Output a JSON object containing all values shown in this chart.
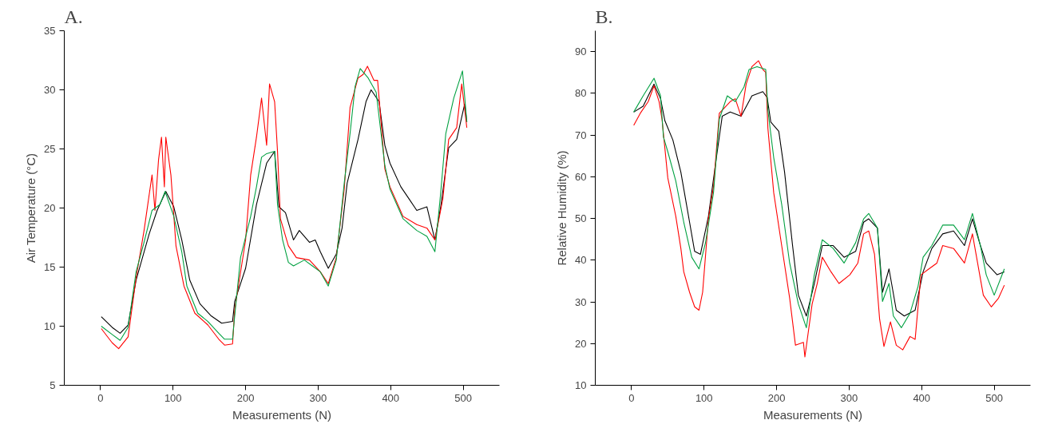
{
  "chart_data": [
    {
      "type": "line",
      "title": "A.",
      "xlabel": "Measurements (N)",
      "ylabel": "Air Temperature (°C)",
      "xlim": [
        -50,
        550
      ],
      "xticks": [
        0,
        100,
        200,
        300,
        400,
        500
      ],
      "ylim": [
        5,
        35
      ],
      "yticks": [
        5,
        10,
        15,
        20,
        25,
        30,
        35
      ],
      "grid": false,
      "marker": "none",
      "line_style": "solid",
      "series": [
        {
          "color": "#000000",
          "x": [
            1,
            16,
            27,
            38,
            49,
            67,
            78,
            90,
            101,
            112,
            123,
            137,
            152,
            167,
            182,
            185,
            200,
            215,
            229,
            240,
            246,
            255,
            266,
            274,
            288,
            296,
            303,
            314,
            325,
            333,
            340,
            355,
            366,
            373,
            384,
            392,
            399,
            414,
            425,
            436,
            450,
            461,
            469,
            480,
            491,
            502,
            505
          ],
          "values": [
            10.8,
            9.9,
            9.4,
            10.1,
            13.9,
            17.8,
            19.8,
            21.4,
            20.1,
            17.3,
            13.9,
            11.9,
            10.9,
            10.25,
            10.4,
            12.1,
            14.9,
            20.3,
            23.8,
            24.8,
            20.1,
            19.6,
            17.3,
            18.1,
            17.1,
            17.3,
            16.3,
            14.9,
            16.1,
            18.3,
            22.1,
            25.8,
            29.0,
            30.0,
            29.0,
            25.3,
            23.8,
            21.8,
            20.8,
            19.8,
            20.1,
            17.3,
            20.1,
            25.1,
            25.8,
            28.8,
            27.3
          ]
        },
        {
          "color": "#ff0000",
          "x": [
            1,
            16,
            25,
            38,
            49,
            60,
            67,
            71,
            75,
            80,
            84,
            88,
            90,
            97,
            104,
            115,
            130,
            148,
            163,
            171,
            182,
            185,
            200,
            207,
            215,
            222,
            229,
            233,
            240,
            244,
            248,
            259,
            270,
            288,
            303,
            314,
            325,
            336,
            344,
            355,
            362,
            368,
            377,
            382,
            392,
            399,
            417,
            436,
            450,
            461,
            472,
            480,
            491,
            498,
            505
          ],
          "values": [
            9.8,
            8.6,
            8.1,
            9.1,
            14.1,
            18.1,
            21.1,
            22.8,
            19.8,
            24.1,
            26.0,
            21.8,
            26.0,
            22.8,
            16.8,
            13.4,
            11.1,
            10.1,
            8.9,
            8.4,
            8.5,
            11.4,
            17.3,
            22.8,
            26.0,
            29.3,
            25.3,
            30.5,
            29.0,
            24.8,
            19.1,
            16.8,
            15.8,
            15.6,
            14.6,
            13.6,
            15.8,
            21.6,
            28.5,
            31.0,
            31.3,
            32.0,
            30.8,
            30.8,
            23.3,
            21.8,
            19.3,
            18.6,
            18.3,
            17.3,
            20.8,
            25.8,
            26.8,
            30.5,
            26.8
          ]
        },
        {
          "color": "#00a040",
          "x": [
            1,
            16,
            27,
            38,
            49,
            60,
            71,
            82,
            89,
            101,
            112,
            119,
            134,
            148,
            163,
            171,
            182,
            185,
            193,
            207,
            215,
            222,
            229,
            240,
            244,
            251,
            259,
            266,
            281,
            292,
            303,
            314,
            325,
            336,
            344,
            351,
            358,
            369,
            380,
            392,
            399,
            417,
            436,
            450,
            461,
            469,
            476,
            487,
            499,
            505
          ],
          "values": [
            10.0,
            9.3,
            8.8,
            9.9,
            14.6,
            17.1,
            19.8,
            20.3,
            21.4,
            19.3,
            16.3,
            13.4,
            11.1,
            10.4,
            9.4,
            8.9,
            8.9,
            10.9,
            15.8,
            19.3,
            21.8,
            24.3,
            24.6,
            24.8,
            20.3,
            17.3,
            15.4,
            15.1,
            15.6,
            15.1,
            14.6,
            13.4,
            15.6,
            22.1,
            26.3,
            30.3,
            31.8,
            31.0,
            29.8,
            23.6,
            21.6,
            19.1,
            18.1,
            17.6,
            16.3,
            21.3,
            26.3,
            29.3,
            31.6,
            27.3
          ]
        }
      ]
    },
    {
      "type": "line",
      "title": "B.",
      "xlabel": "Measurements (N)",
      "ylabel": "Relative Humidity (%)",
      "xlim": [
        -50,
        550
      ],
      "xticks": [
        0,
        100,
        200,
        300,
        400,
        500
      ],
      "ylim": [
        10,
        95
      ],
      "yticks": [
        10,
        20,
        30,
        40,
        50,
        60,
        70,
        80,
        90
      ],
      "grid": false,
      "marker": "none",
      "line_style": "solid",
      "series": [
        {
          "color": "#000000",
          "x": [
            3,
            16,
            31,
            40,
            46,
            57,
            68,
            80,
            87,
            95,
            106,
            117,
            125,
            136,
            151,
            166,
            181,
            187,
            192,
            203,
            211,
            222,
            230,
            241,
            252,
            263,
            278,
            293,
            309,
            320,
            327,
            339,
            346,
            355,
            365,
            376,
            391,
            402,
            414,
            429,
            444,
            459,
            470,
            481,
            489,
            504,
            514
          ],
          "values": [
            75.5,
            76.9,
            82.2,
            78.7,
            73.4,
            68.8,
            61.1,
            49.1,
            42.1,
            41.4,
            50.5,
            64.6,
            74.5,
            75.5,
            74.5,
            79.4,
            80.4,
            79.0,
            73.1,
            70.9,
            61.1,
            43.5,
            31.6,
            26.6,
            34.4,
            43.5,
            43.5,
            40.7,
            42.1,
            49.1,
            49.9,
            47.7,
            32.3,
            37.9,
            28.0,
            26.6,
            28.0,
            37.2,
            42.8,
            46.3,
            47.0,
            43.5,
            49.9,
            43.5,
            39.3,
            36.5,
            37.2
          ]
        },
        {
          "color": "#ff0000",
          "x": [
            3,
            12,
            23,
            31,
            38,
            42,
            50,
            61,
            68,
            72,
            80,
            87,
            93,
            98,
            106,
            113,
            121,
            136,
            143,
            151,
            158,
            166,
            175,
            181,
            185,
            188,
            196,
            207,
            218,
            226,
            237,
            239,
            249,
            256,
            263,
            275,
            286,
            301,
            312,
            320,
            327,
            335,
            342,
            348,
            357,
            365,
            374,
            384,
            391,
            399,
            410,
            421,
            429,
            444,
            459,
            470,
            485,
            496,
            506,
            514
          ],
          "values": [
            72.3,
            75.2,
            78.0,
            81.8,
            78.0,
            73.8,
            59.7,
            50.5,
            42.8,
            37.2,
            32.3,
            28.8,
            28.0,
            32.3,
            49.9,
            57.6,
            75.2,
            78.0,
            78.7,
            74.5,
            82.2,
            86.4,
            87.8,
            85.7,
            85.0,
            71.6,
            56.2,
            43.5,
            30.9,
            19.6,
            20.3,
            16.8,
            29.5,
            34.4,
            40.7,
            37.2,
            34.4,
            36.5,
            39.3,
            46.3,
            47.0,
            41.4,
            25.9,
            19.3,
            25.2,
            19.6,
            18.5,
            21.7,
            21.0,
            36.5,
            37.9,
            39.3,
            43.5,
            42.8,
            39.3,
            46.3,
            31.6,
            28.8,
            30.9,
            34.0
          ]
        },
        {
          "color": "#00a040",
          "x": [
            3,
            16,
            31,
            40,
            44,
            50,
            61,
            72,
            83,
            93,
            102,
            113,
            121,
            132,
            143,
            155,
            162,
            173,
            185,
            188,
            196,
            207,
            218,
            230,
            241,
            252,
            263,
            278,
            293,
            309,
            320,
            327,
            339,
            346,
            355,
            361,
            372,
            384,
            395,
            402,
            414,
            429,
            444,
            459,
            470,
            481,
            489,
            500,
            514
          ],
          "values": [
            75.5,
            79.4,
            83.6,
            79.4,
            69.5,
            66.0,
            59.0,
            49.1,
            40.7,
            37.9,
            44.2,
            56.2,
            73.8,
            79.4,
            78.0,
            81.5,
            85.7,
            86.4,
            85.7,
            75.9,
            64.6,
            53.4,
            39.3,
            29.5,
            23.8,
            36.5,
            44.9,
            42.8,
            39.3,
            44.2,
            49.9,
            51.2,
            47.7,
            30.1,
            34.4,
            26.6,
            23.8,
            27.3,
            33.7,
            40.7,
            43.5,
            48.4,
            48.4,
            44.9,
            51.2,
            43.5,
            36.5,
            31.6,
            37.9
          ]
        }
      ]
    }
  ]
}
